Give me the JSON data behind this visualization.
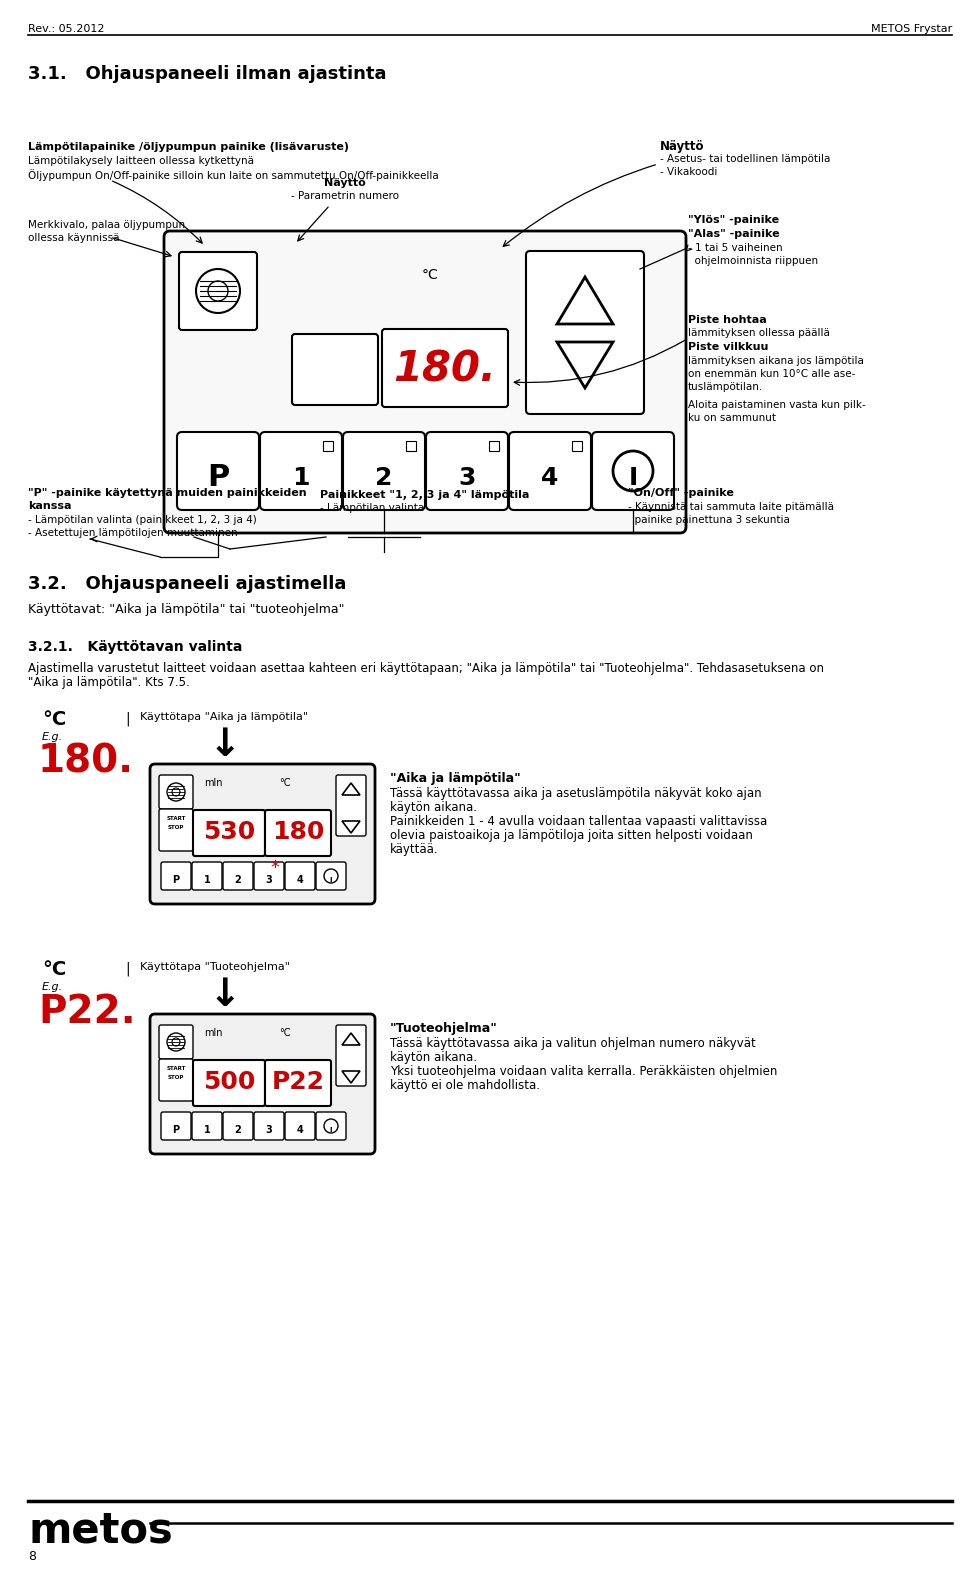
{
  "header_left": "Rev.: 05.2012",
  "header_right": "METOS Frystar",
  "section_title": "3.1.   Ohjauspaneeli ilman ajastinta",
  "footer_logo": "metos",
  "footer_page": "8",
  "bg_color": "#ffffff",
  "text_color": "#000000",
  "red_color": "#cc0000",
  "label_temp_pump_bold": "Lämpötilapainike /öljypumpun painike (lisävaruste)",
  "label_temp_pump_lines": [
    "Lämpötilakysely laitteen ollessa kytkettynä",
    "Öljypumpun On/Off-painike silloin kun laite on sammutettu On/Off-painikkeella"
  ],
  "label_naytto_center_bold": "Näyttö",
  "label_naytto_center_sub": "- Parametrin numero",
  "label_naytto_right_bold": "Näyttö",
  "label_naytto_right_lines": [
    "- Asetus- tai todellinen lämpötila",
    "- Vikakoodi"
  ],
  "label_merkki_lines": [
    "Merkkivalo, palaa öljypumpun",
    "ollessa käynnissä"
  ],
  "label_ylos_bold": "\"Ylös\" -painike",
  "label_alas_bold": "\"Alas\" -painike",
  "label_alas_lines": [
    "- 1 tai 5 vaiheinen",
    "  ohjelmoinnista riippuen"
  ],
  "label_piste_hohtaa_bold": "Piste hohtaa",
  "label_piste_hohtaa_sub": "lämmityksen ollessa päällä",
  "label_piste_vilkkuu_bold": "Piste vilkkuu",
  "label_piste_vilkkuu_lines": [
    "lämmityksen aikana jos lämpötila",
    "on enemmän kun 10°C alle ase-",
    "tuslämpötilan."
  ],
  "label_aloita_lines": [
    "Aloita paistaminen vasta kun pilk-",
    "ku on sammunut"
  ],
  "label_p_painike_bold": "\"P\" -painike käytettynä muiden painikkeiden",
  "label_p_painike_bold2": "kanssa",
  "label_p_painike_lines": [
    "- Lämpötilan valinta (painikkeet 1, 2, 3 ja 4)",
    "- Asetettujen lämpötilojen muuttaminen"
  ],
  "label_painikkeet_bold": "Painikkeet \"1, 2, 3 ja 4\" lämpötila",
  "label_painikkeet_sub": "- Lämpötilan valinta",
  "label_onoff_bold": "\"On/Off\" -painike",
  "label_onoff_lines": [
    "- Käynnistä tai sammuta laite pitämällä",
    "  painike painettuna 3 sekuntia"
  ],
  "section2_title": "3.2.   Ohjauspaneeli ajastimella",
  "section2_sub": "Käyttötavat: \"Aika ja lämpötila\" tai \"tuoteohjelma\"",
  "section21_title": "3.2.1.   Käyttötavan valinta",
  "section21_text_line1": "Ajastimella varustetut laitteet voidaan asettaa kahteen eri käyttötapaan; \"Aika ja lämpötila\" tai \"Tuoteohjelma\". Tehdasasetuksena on",
  "section21_text_line2": "\"Aika ja lämpötila\". Kts 7.5.",
  "usage1_label": "Käyttötapa \"Aika ja lämpötila\"",
  "usage1_display_time": "530",
  "usage1_display_temp": "180",
  "usage1_eg_val": "180.",
  "usage1_desc_bold": "\"Aika ja lämpötila\"",
  "usage1_desc_lines": [
    "Tässä käyttötavassa aika ja asetuslämpötila näkyvät koko ajan",
    "käytön aikana.",
    "Painikkeiden 1 - 4 avulla voidaan tallentaa vapaasti valittavissa",
    "olevia paistoaikoja ja lämpötiloja joita sitten helposti voidaan",
    "käyttää."
  ],
  "usage2_label": "Käyttötapa \"Tuoteohjelma\"",
  "usage2_display_time": "500",
  "usage2_display_prog": "P22",
  "usage2_eg_val": "P22.",
  "usage2_desc_bold": "\"Tuoteohjelma\"",
  "usage2_desc_lines": [
    "Tässä käyttötavassa aika ja valitun ohjelman numero näkyvät",
    "käytön aikana.",
    "Yksi tuoteohjelma voidaan valita kerralla. Peräkkäisten ohjelmien",
    "käyttö ei ole mahdollista."
  ]
}
